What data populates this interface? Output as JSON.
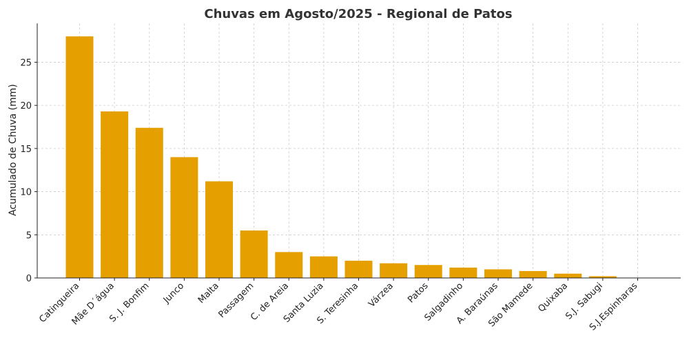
{
  "chart_data": {
    "type": "bar",
    "title": "Chuvas em Agosto/2025 - Regional de Patos",
    "xlabel": "",
    "ylabel": "Acumulado de Chuva (mm)",
    "ylim": [
      0,
      29.5
    ],
    "yticks": [
      0,
      5,
      10,
      15,
      20,
      25
    ],
    "grid": true,
    "categories": [
      "Catingueira",
      "Mãe D´água",
      "S. J. Bonfim",
      "Junco",
      "Malta",
      "Passagem",
      "C. de Areia",
      "Santa Luzia",
      "S. Teresinha",
      "Várzea",
      "Patos",
      "Salgadinho",
      "A. Baraúnas",
      "São Mamede",
      "Quixaba",
      "S.J. Sabugi",
      "S.J.Espinharas"
    ],
    "values": [
      28.0,
      19.3,
      17.4,
      14.0,
      11.2,
      5.5,
      3.0,
      2.5,
      2.0,
      1.7,
      1.5,
      1.2,
      1.0,
      0.8,
      0.5,
      0.2,
      0.0
    ],
    "colors": {
      "bar": "#E5A000",
      "grid": "#cccccc",
      "axis": "#222222"
    }
  }
}
